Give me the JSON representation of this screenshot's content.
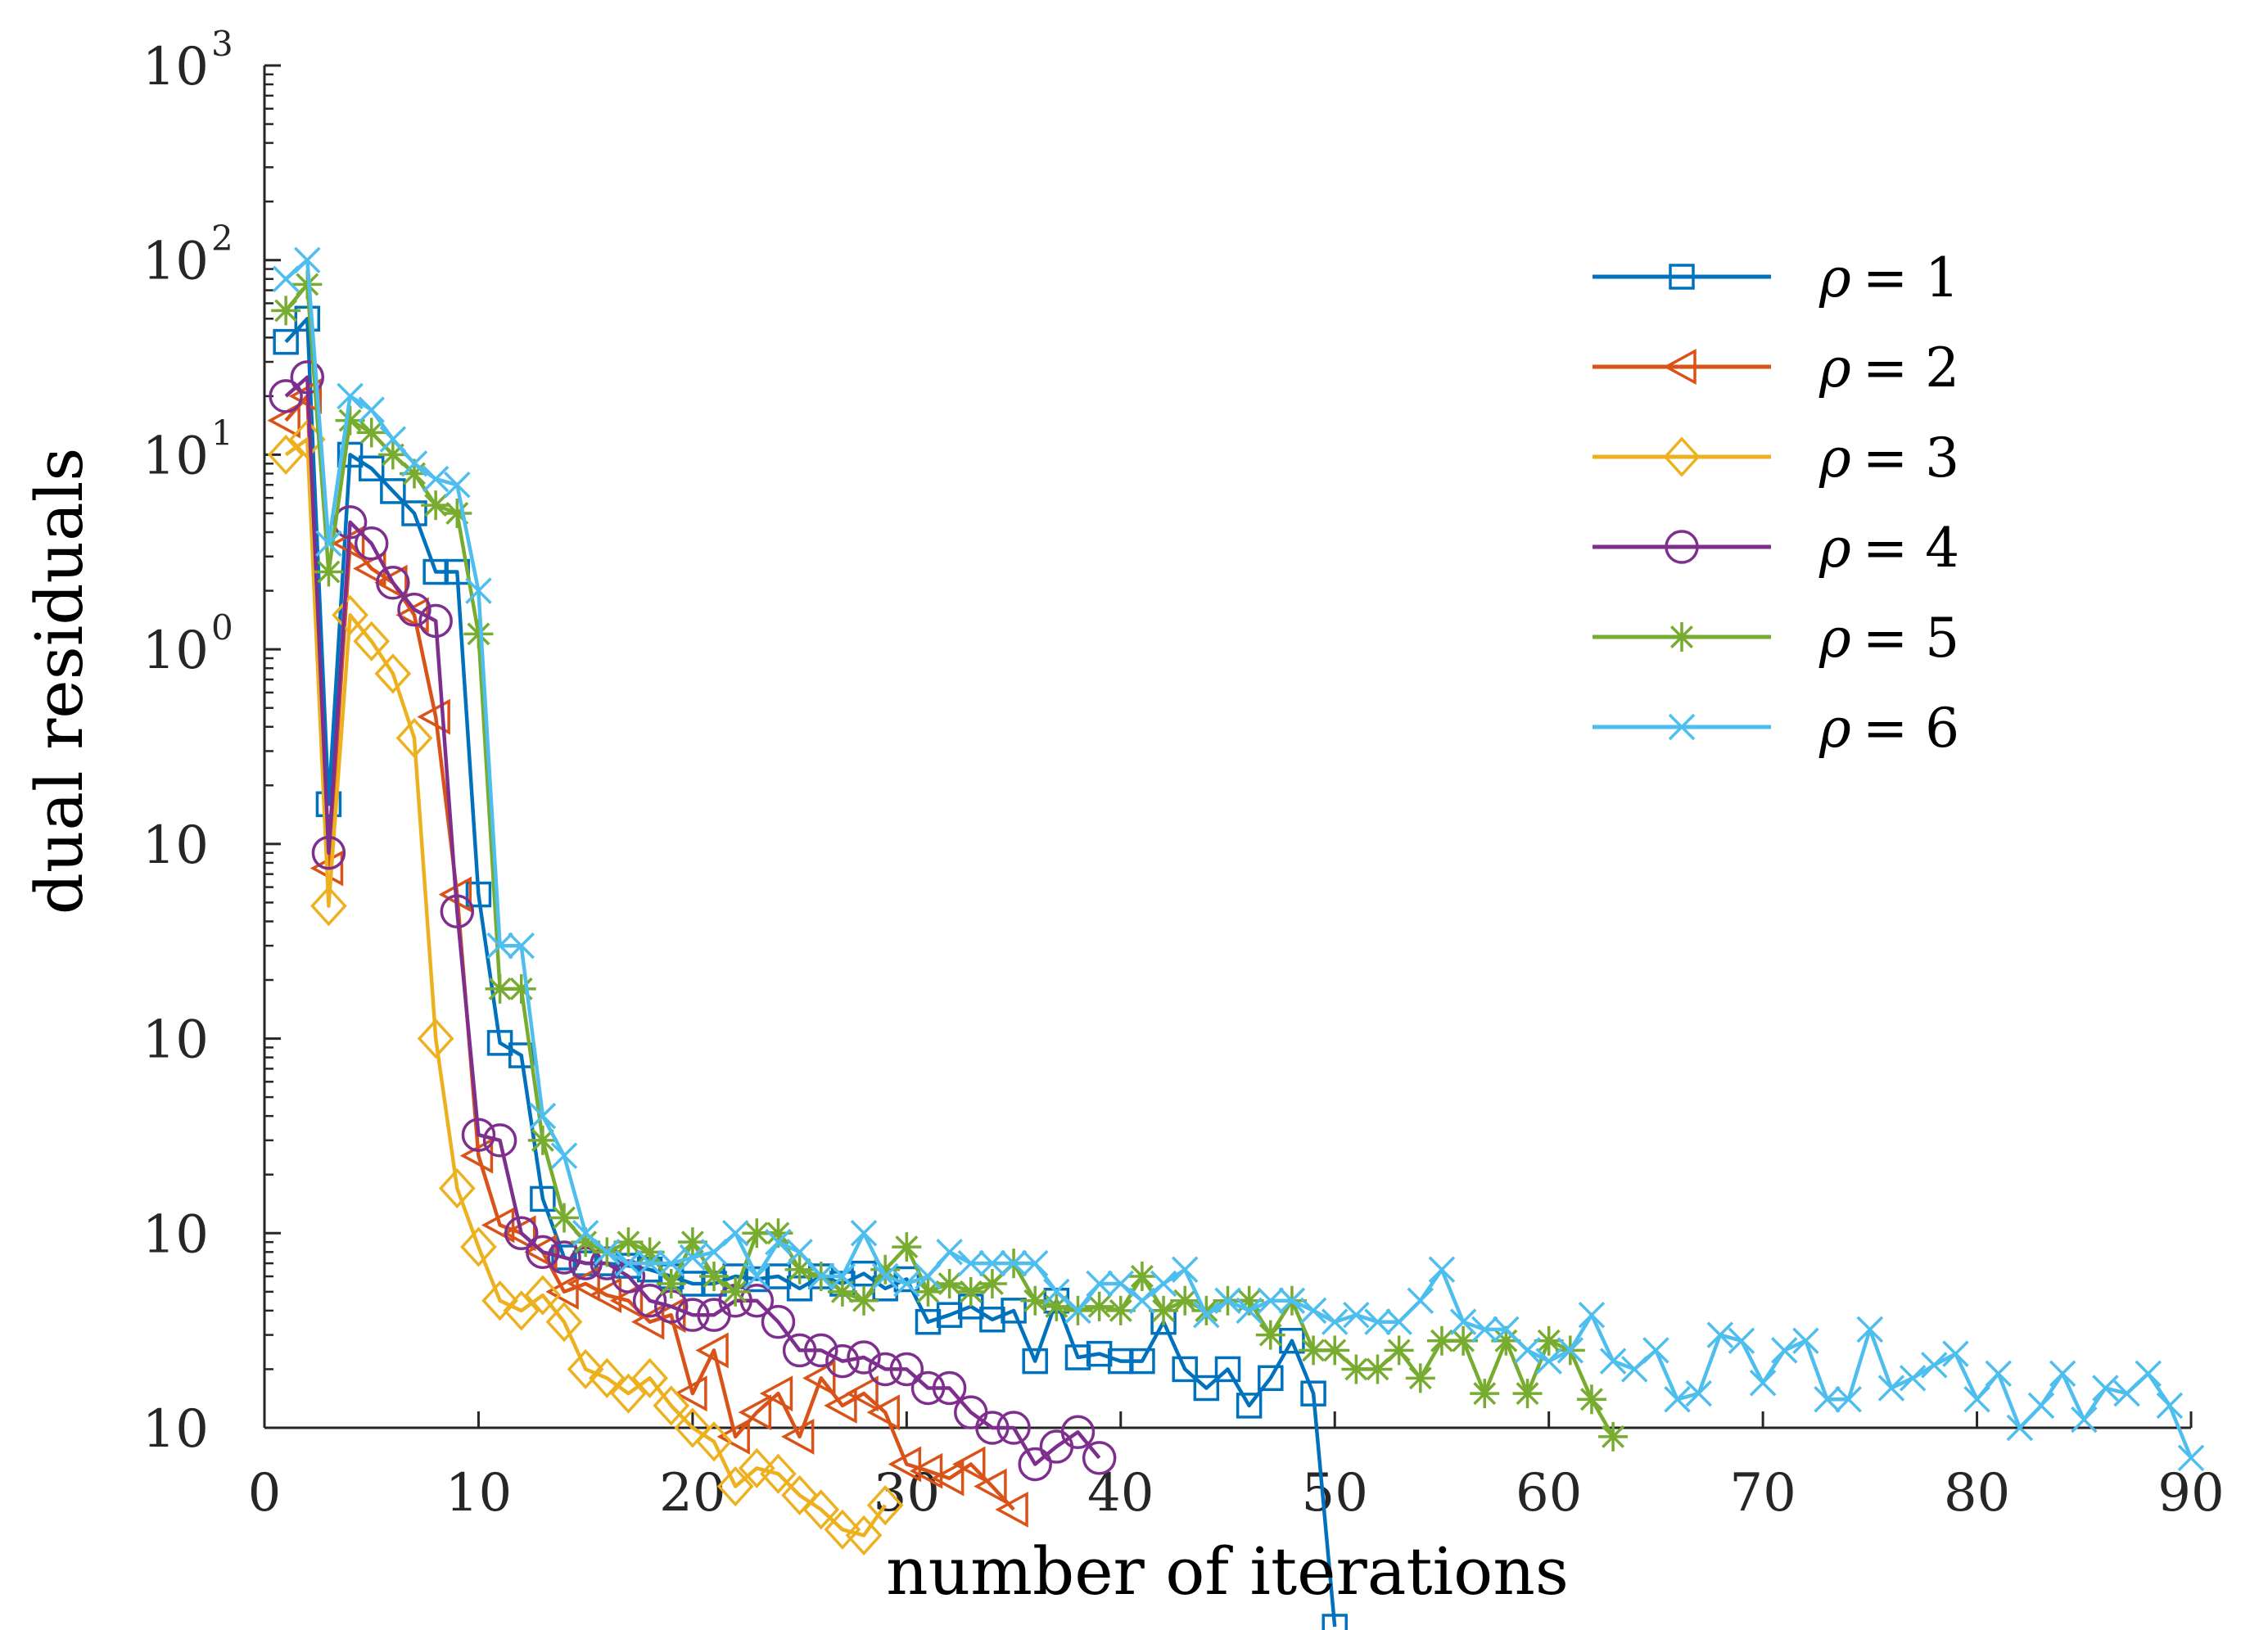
{
  "chart_data": {
    "type": "line",
    "xlabel": "number of iterations",
    "ylabel": "dual residuals",
    "xlim": [
      0,
      90
    ],
    "ylim_log10": [
      -4,
      3
    ],
    "x_ticks": [
      0,
      10,
      20,
      30,
      40,
      50,
      60,
      70,
      80,
      90
    ],
    "y_ticks": [
      {
        "base": "10",
        "exp": "3"
      },
      {
        "base": "10",
        "exp": "2"
      },
      {
        "base": "10",
        "exp": "1"
      },
      {
        "base": "10",
        "exp": "0"
      },
      {
        "base": "10",
        "exp": ""
      },
      {
        "base": "10",
        "exp": ""
      },
      {
        "base": "10",
        "exp": ""
      },
      {
        "base": "10",
        "exp": ""
      }
    ],
    "legend_position": "top-right",
    "series": [
      {
        "name": "ρ = 1",
        "symbol": "ρ",
        "eq": "= 1",
        "color": "#0072BD",
        "marker": "square",
        "x": [
          1,
          2,
          3,
          4,
          5,
          6,
          7,
          8,
          9,
          10,
          11,
          12,
          13,
          14,
          15,
          16,
          17,
          18,
          19,
          20,
          21,
          22,
          23,
          24,
          25,
          26,
          27,
          28,
          29,
          30,
          31,
          32,
          33,
          34,
          35,
          36,
          37,
          38,
          39,
          40,
          41,
          42,
          43,
          44,
          45,
          46,
          47,
          48,
          49,
          50
        ],
        "y": [
          38,
          50,
          0.16,
          10,
          8.5,
          6.5,
          5,
          2.5,
          2.5,
          0.055,
          0.0095,
          0.0082,
          0.0015,
          0.00075,
          0.0007,
          0.0007,
          0.00068,
          0.00065,
          0.0006,
          0.00055,
          0.00055,
          0.0006,
          0.00058,
          0.0006,
          0.00052,
          0.0006,
          0.00055,
          0.00062,
          0.00052,
          0.00058,
          0.00035,
          0.00038,
          0.00042,
          0.00036,
          0.0004,
          0.00022,
          0.00045,
          0.00023,
          0.00024,
          0.00022,
          0.00022,
          0.00035,
          0.0002,
          0.00016,
          0.0002,
          0.00013,
          0.00018,
          0.00028,
          0.00015,
          9.5e-06
        ]
      },
      {
        "name": "ρ = 2",
        "symbol": "ρ",
        "eq": "= 2",
        "color": "#D95319",
        "marker": "triangle-left",
        "x": [
          1,
          2,
          3,
          4,
          5,
          6,
          7,
          8,
          9,
          10,
          11,
          12,
          13,
          14,
          15,
          16,
          17,
          18,
          19,
          20,
          21,
          22,
          23,
          24,
          25,
          26,
          27,
          28,
          29,
          30,
          31,
          32,
          33,
          34,
          35
        ],
        "y": [
          15,
          20,
          0.075,
          3.5,
          2.6,
          2.2,
          1.5,
          0.45,
          0.055,
          0.0025,
          0.0011,
          0.001,
          0.0008,
          0.0005,
          0.00055,
          0.00048,
          0.00045,
          0.00035,
          0.00038,
          0.00015,
          0.00025,
          9e-05,
          0.00012,
          0.00015,
          9e-05,
          0.00018,
          0.00013,
          0.00015,
          0.00012,
          6.5e-05,
          6e-05,
          5.5e-05,
          6.5e-05,
          5e-05,
          3.8e-05
        ]
      },
      {
        "name": "ρ = 3",
        "symbol": "ρ",
        "eq": "= 3",
        "color": "#EDB120",
        "marker": "diamond",
        "x": [
          1,
          2,
          3,
          4,
          5,
          6,
          7,
          8,
          9,
          10,
          11,
          12,
          13,
          14,
          15,
          16,
          17,
          18,
          19,
          20,
          21,
          22,
          23,
          24,
          25,
          26,
          27,
          28,
          29
        ],
        "y": [
          10,
          12,
          0.048,
          1.5,
          1.1,
          0.75,
          0.35,
          0.01,
          0.0017,
          0.00085,
          0.00045,
          0.0004,
          0.00048,
          0.00035,
          0.0002,
          0.00018,
          0.00015,
          0.00018,
          0.00013,
          0.0001,
          8.5e-05,
          5e-05,
          6.2e-05,
          5.8e-05,
          4.5e-05,
          3.8e-05,
          3e-05,
          2.8e-05,
          4e-05
        ]
      },
      {
        "name": "ρ = 4",
        "symbol": "ρ",
        "eq": "= 4",
        "color": "#7E2F8E",
        "marker": "circle",
        "x": [
          1,
          2,
          3,
          4,
          5,
          6,
          7,
          8,
          9,
          10,
          11,
          12,
          13,
          14,
          15,
          16,
          17,
          18,
          19,
          20,
          21,
          22,
          23,
          24,
          25,
          26,
          27,
          28,
          29,
          30,
          31,
          32,
          33,
          34,
          35,
          36,
          37,
          38,
          39
        ],
        "y": [
          20,
          25,
          0.09,
          4.5,
          3.5,
          2.2,
          1.6,
          1.4,
          0.045,
          0.0032,
          0.003,
          0.001,
          0.0008,
          0.00075,
          0.0007,
          0.0007,
          0.0006,
          0.00045,
          0.00042,
          0.00038,
          0.00038,
          0.00045,
          0.00045,
          0.00035,
          0.00025,
          0.00025,
          0.00022,
          0.00023,
          0.0002,
          0.0002,
          0.00016,
          0.00016,
          0.00012,
          0.0001,
          0.0001,
          6.5e-05,
          8e-05,
          9.5e-05,
          7e-05
        ]
      },
      {
        "name": "ρ = 5",
        "symbol": "ρ",
        "eq": "= 5",
        "color": "#77AC30",
        "marker": "asterisk",
        "x": [
          1,
          2,
          3,
          4,
          5,
          6,
          7,
          8,
          9,
          10,
          11,
          12,
          13,
          14,
          15,
          16,
          17,
          18,
          19,
          20,
          21,
          22,
          23,
          24,
          25,
          26,
          27,
          28,
          29,
          30,
          31,
          32,
          33,
          34,
          35,
          36,
          37,
          38,
          39,
          40,
          41,
          42,
          43,
          44,
          45,
          46,
          47,
          48,
          49,
          50,
          51,
          52,
          53,
          54,
          55,
          56,
          57,
          58,
          59,
          60,
          61,
          62,
          63
        ],
        "y": [
          55,
          75,
          2.5,
          15,
          13,
          10,
          8,
          5.5,
          5,
          1.2,
          0.018,
          0.018,
          0.003,
          0.0012,
          0.0009,
          0.0008,
          0.0009,
          0.0008,
          0.00055,
          0.0009,
          0.0006,
          0.0005,
          0.001,
          0.001,
          0.00065,
          0.0006,
          0.0005,
          0.00045,
          0.00065,
          0.00085,
          0.0005,
          0.00055,
          0.0005,
          0.00055,
          0.0007,
          0.00045,
          0.00042,
          0.0004,
          0.00042,
          0.0004,
          0.0006,
          0.0004,
          0.00045,
          0.0004,
          0.00045,
          0.00045,
          0.0003,
          0.00045,
          0.00025,
          0.00025,
          0.0002,
          0.0002,
          0.00025,
          0.00018,
          0.00028,
          0.00028,
          0.00015,
          0.00028,
          0.00015,
          0.00028,
          0.00025,
          0.00014,
          9e-05
        ]
      },
      {
        "name": "ρ = 6",
        "symbol": "ρ",
        "eq": "= 6",
        "color": "#4DBEEE",
        "marker": "x",
        "x": [
          1,
          2,
          3,
          4,
          5,
          6,
          7,
          8,
          9,
          10,
          11,
          12,
          13,
          14,
          15,
          16,
          17,
          18,
          19,
          20,
          21,
          22,
          23,
          24,
          25,
          26,
          27,
          28,
          29,
          30,
          31,
          32,
          33,
          34,
          35,
          36,
          37,
          38,
          39,
          40,
          41,
          42,
          43,
          44,
          45,
          46,
          47,
          48,
          49,
          50,
          51,
          52,
          53,
          54,
          55,
          56,
          57,
          58,
          59,
          60,
          61,
          62,
          63,
          64,
          65,
          66,
          67,
          68,
          69,
          70,
          71,
          72,
          73,
          74,
          75,
          76,
          77,
          78,
          79,
          80,
          81,
          82,
          83,
          84,
          85,
          86,
          87,
          88,
          89,
          90
        ],
        "y": [
          80,
          100,
          3.5,
          20,
          17,
          12,
          9,
          7.5,
          7,
          2,
          0.03,
          0.03,
          0.004,
          0.0025,
          0.001,
          0.0008,
          0.0007,
          0.0007,
          0.0007,
          0.00075,
          0.0008,
          0.001,
          0.0006,
          0.0009,
          0.0008,
          0.0006,
          0.0006,
          0.001,
          0.0006,
          0.00055,
          0.0006,
          0.0008,
          0.0007,
          0.0007,
          0.0007,
          0.0007,
          0.0005,
          0.0004,
          0.00055,
          0.00055,
          0.00045,
          0.00055,
          0.00065,
          0.00038,
          0.00045,
          0.0004,
          0.00045,
          0.00045,
          0.0004,
          0.00035,
          0.00038,
          0.00035,
          0.00035,
          0.00045,
          0.00065,
          0.00035,
          0.00032,
          0.00032,
          0.00025,
          0.00022,
          0.00025,
          0.00038,
          0.00022,
          0.0002,
          0.00025,
          0.00014,
          0.00015,
          0.0003,
          0.00028,
          0.00017,
          0.00025,
          0.00028,
          0.00014,
          0.00014,
          0.00032,
          0.00016,
          0.00018,
          0.00021,
          0.00024,
          0.00014,
          0.00019,
          0.0001,
          0.00013,
          0.00019,
          0.00011,
          0.00016,
          0.00015,
          0.00019,
          0.00013,
          7e-05
        ]
      }
    ]
  }
}
